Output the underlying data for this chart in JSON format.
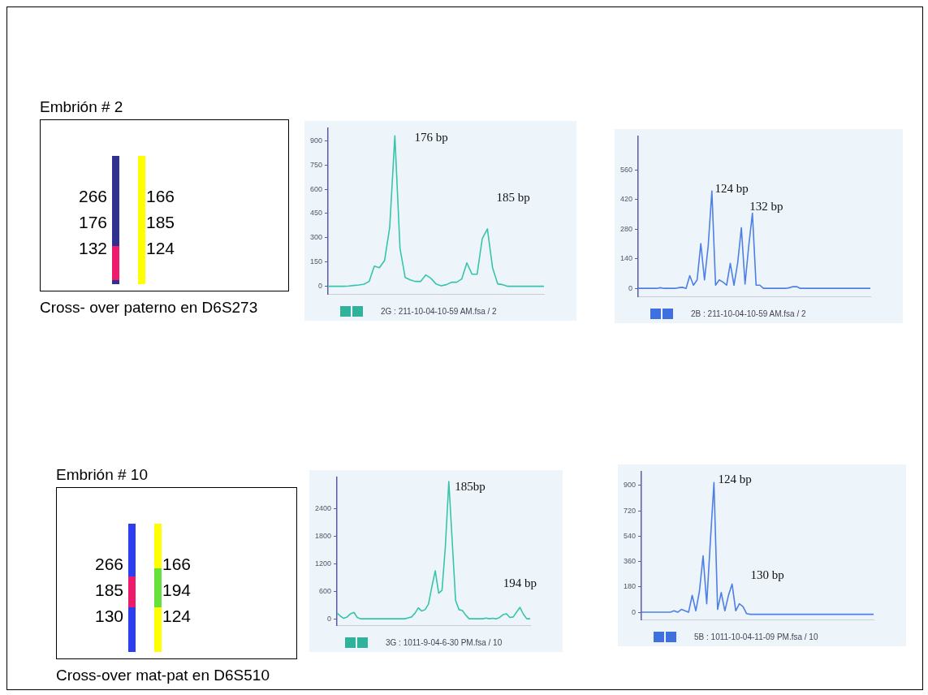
{
  "chart_data": [
    {
      "type": "other",
      "title": "Embrión # 2",
      "subtitle": "Cross- over paterno en D6S273",
      "annotations": [
        "266",
        "176",
        "132",
        "166",
        "185",
        "124"
      ]
    },
    {
      "type": "line",
      "categories": [
        null,
        null,
        null,
        null,
        null,
        null,
        null,
        null,
        null,
        null,
        null,
        null,
        null,
        null,
        null,
        null,
        null,
        null,
        null,
        null,
        null,
        null,
        null,
        null,
        null,
        null,
        null,
        null,
        null,
        null,
        null,
        null,
        null,
        null,
        null,
        null,
        null,
        null,
        null,
        null,
        null,
        null,
        null
      ],
      "series": [
        {
          "color": "#36c4ab",
          "values": [
            0,
            0,
            0,
            0,
            2,
            5,
            8,
            13,
            30,
            125,
            115,
            160,
            365,
            930,
            235,
            55,
            40,
            30,
            30,
            70,
            50,
            15,
            3,
            10,
            25,
            25,
            45,
            145,
            75,
            75,
            295,
            355,
            115,
            15,
            10,
            0,
            0,
            0,
            0,
            0,
            0,
            0,
            0
          ]
        }
      ],
      "ylim": [
        -50,
        980
      ],
      "yticks": [
        0,
        150,
        300,
        450,
        600,
        750,
        900
      ],
      "tick_labels": "y",
      "grid": false,
      "marker": "none",
      "annotations": [
        "176 bp",
        "185 bp",
        "2G : 211-10-04-10-59 AM.fsa / 2"
      ]
    },
    {
      "type": "line",
      "categories": [
        null,
        null,
        null,
        null,
        null,
        null,
        null,
        null,
        null,
        null,
        null,
        null,
        null,
        null,
        null,
        null,
        null,
        null,
        null,
        null,
        null,
        null,
        null,
        null,
        null,
        null,
        null,
        null,
        null,
        null,
        null,
        null,
        null,
        null,
        null,
        null,
        null,
        null,
        null,
        null,
        null,
        null,
        null,
        null,
        null,
        null,
        null,
        null,
        null,
        null,
        null,
        null,
        null,
        null,
        null,
        null,
        null,
        null,
        null,
        null,
        null,
        null,
        null,
        null
      ],
      "series": [
        {
          "color": "#4d7fe6",
          "values": [
            0,
            0,
            0,
            0,
            0,
            0,
            3,
            0,
            0,
            0,
            0,
            3,
            5,
            0,
            60,
            15,
            40,
            211,
            40,
            200,
            460,
            15,
            40,
            30,
            15,
            118,
            15,
            120,
            286,
            20,
            200,
            355,
            15,
            15,
            0,
            0,
            0,
            0,
            0,
            0,
            0,
            3,
            8,
            8,
            0,
            0,
            0,
            0,
            0,
            0,
            0,
            0,
            0,
            0,
            0,
            0,
            0,
            0,
            0,
            0,
            0,
            0,
            0,
            0
          ]
        }
      ],
      "ylim": [
        -40,
        720
      ],
      "yticks": [
        0,
        140,
        280,
        420,
        560
      ],
      "tick_labels": "y",
      "grid": false,
      "marker": "none",
      "annotations": [
        "124 bp",
        "132 bp",
        "2B : 211-10-04-10-59 AM.fsa / 2"
      ]
    },
    {
      "type": "other",
      "title": "Embrión # 10",
      "subtitle": "Cross-over mat-pat en D6S510",
      "annotations": [
        "266",
        "185",
        "130",
        "166",
        "194",
        "124"
      ]
    },
    {
      "type": "line",
      "categories": [
        null,
        null,
        null,
        null,
        null,
        null,
        null,
        null,
        null,
        null,
        null,
        null,
        null,
        null,
        null,
        null,
        null,
        null,
        null,
        null,
        null,
        null,
        null,
        null,
        null,
        null,
        null,
        null,
        null,
        null,
        null,
        null,
        null,
        null,
        null,
        null,
        null,
        null,
        null,
        null,
        null,
        null,
        null,
        null,
        null,
        null,
        null,
        null,
        null,
        null,
        null,
        null,
        null,
        null,
        null,
        null,
        null,
        null
      ],
      "series": [
        {
          "color": "#36c4ab",
          "values": [
            130,
            60,
            10,
            40,
            110,
            140,
            30,
            0,
            0,
            0,
            0,
            0,
            0,
            0,
            0,
            0,
            0,
            0,
            0,
            0,
            0,
            20,
            40,
            120,
            240,
            170,
            200,
            320,
            700,
            1050,
            560,
            620,
            1600,
            3000,
            1700,
            400,
            200,
            180,
            80,
            0,
            0,
            0,
            0,
            0,
            15,
            0,
            10,
            0,
            30,
            90,
            110,
            30,
            40,
            150,
            250,
            100,
            0,
            0
          ]
        }
      ],
      "ylim": [
        -150,
        3100
      ],
      "yticks": [
        0,
        600,
        1200,
        1800,
        2400
      ],
      "tick_labels": "y",
      "grid": false,
      "marker": "none",
      "annotations": [
        "185bp",
        "194 bp",
        "3G : 1011-9-04-6-30 PM.fsa / 10"
      ]
    },
    {
      "type": "line",
      "categories": [
        null,
        null,
        null,
        null,
        null,
        null,
        null,
        null,
        null,
        null,
        null,
        null,
        null,
        null,
        null,
        null,
        null,
        null,
        null,
        null,
        null,
        null,
        null,
        null,
        null,
        null,
        null,
        null,
        null,
        null,
        null,
        null,
        null,
        null,
        null,
        null,
        null,
        null,
        null,
        null,
        null,
        null,
        null,
        null,
        null,
        null,
        null,
        null,
        null,
        null,
        null,
        null,
        null,
        null,
        null,
        null,
        null,
        null,
        null,
        null,
        null,
        null,
        null,
        null,
        null
      ],
      "series": [
        {
          "color": "#4d7fe6",
          "values": [
            0,
            0,
            0,
            0,
            0,
            0,
            0,
            0,
            0,
            10,
            0,
            20,
            10,
            0,
            120,
            10,
            150,
            400,
            60,
            500,
            920,
            20,
            140,
            10,
            120,
            200,
            10,
            60,
            40,
            -10,
            -15,
            -15,
            -15,
            -15,
            -15,
            -15,
            -15,
            -15,
            -15,
            -15,
            -15,
            -15,
            -15,
            -15,
            -15,
            -15,
            -15,
            -15,
            -15,
            -15,
            -15,
            -15,
            -15,
            -15,
            -15,
            -15,
            -15,
            -15,
            -15,
            -15,
            -15,
            -15,
            -15,
            -15,
            -15
          ]
        }
      ],
      "ylim": [
        -55,
        1000
      ],
      "yticks": [
        0,
        180,
        360,
        540,
        720,
        900
      ],
      "tick_labels": "y",
      "grid": false,
      "marker": "none",
      "annotations": [
        "124 bp",
        "130 bp",
        "5B : 1011-10-04-11-09 PM.fsa / 10"
      ]
    }
  ]
}
